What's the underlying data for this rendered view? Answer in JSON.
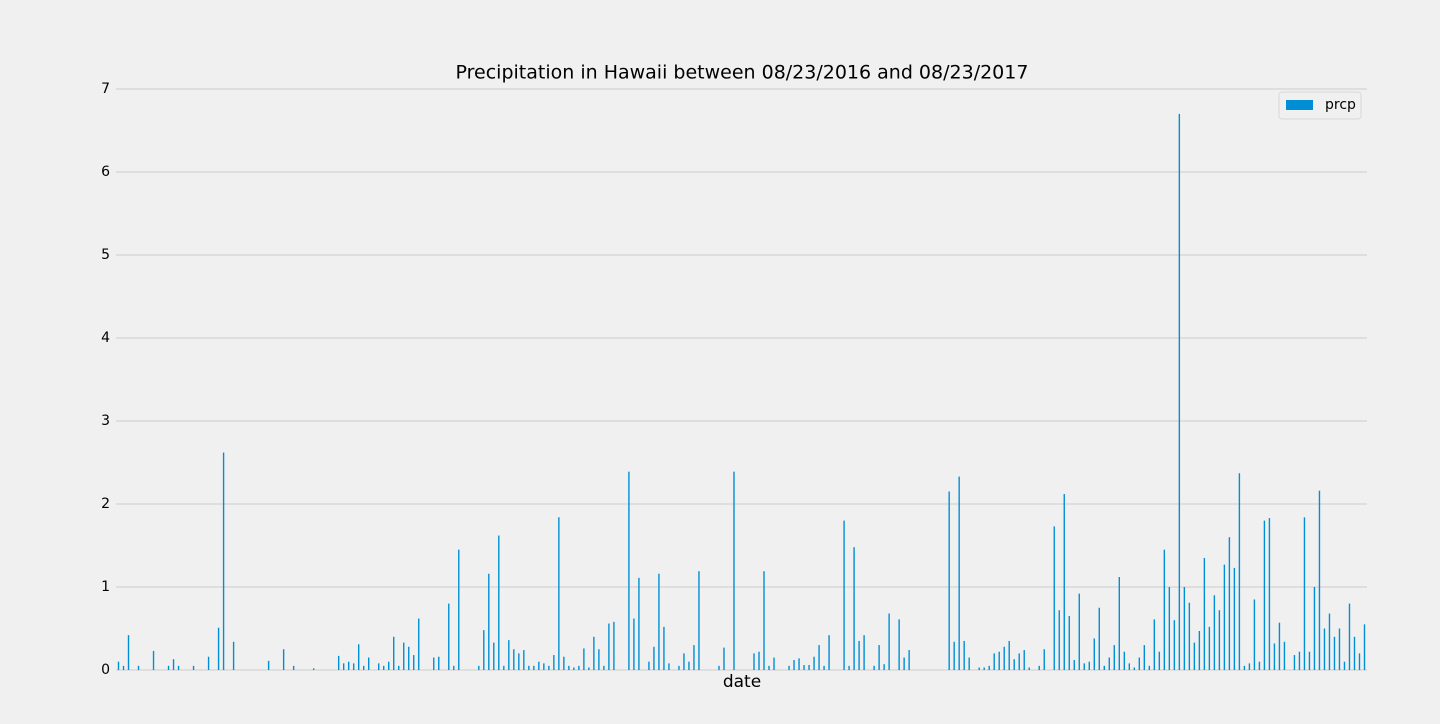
{
  "chart_data": {
    "type": "bar",
    "title": "Precipitation in Hawaii between 08/23/2016 and 08/23/2017",
    "xlabel": "date",
    "color": "#008fd5",
    "grid": true,
    "legend": "upper right",
    "series": [
      {
        "name": "prcp",
        "color": "#008fd5",
        "values": [
          0.1,
          0.05,
          0.42,
          0,
          0.05,
          0,
          0,
          0.23,
          0,
          0,
          0.05,
          0.13,
          0.05,
          0,
          0,
          0.05,
          0,
          0,
          0.16,
          0,
          0.51,
          2.62,
          0,
          0.34,
          0,
          0,
          0,
          0,
          0,
          0,
          0.11,
          0,
          0,
          0.25,
          0,
          0.05,
          0,
          0,
          0,
          0.02,
          0,
          0,
          0,
          0,
          0.17,
          0.08,
          0.1,
          0.08,
          0.31,
          0.05,
          0.15,
          0,
          0.08,
          0.05,
          0.1,
          0.4,
          0.05,
          0.33,
          0.28,
          0.18,
          0.62,
          0,
          0,
          0.15,
          0.16,
          0,
          0.8,
          0.05,
          1.45,
          0,
          0,
          0,
          0.05,
          0.48,
          1.16,
          0.33,
          1.62,
          0.05,
          0.36,
          0.25,
          0.2,
          0.24,
          0.05,
          0.05,
          0.1,
          0.08,
          0.05,
          0.18,
          1.84,
          0.16,
          0.05,
          0.03,
          0.05,
          0.26,
          0.03,
          0.4,
          0.25,
          0.05,
          0.56,
          0.58,
          0,
          0,
          2.39,
          0.62,
          1.11,
          0,
          0.1,
          0.28,
          1.16,
          0.52,
          0.08,
          0,
          0.05,
          0.2,
          0.1,
          0.3,
          1.19,
          0,
          0,
          0,
          0.05,
          0.27,
          0,
          2.39,
          0,
          0,
          0,
          0.2,
          0.22,
          1.19,
          0.05,
          0.15,
          0,
          0,
          0.05,
          0.12,
          0.14,
          0.06,
          0.06,
          0.16,
          0.3,
          0.05,
          0.42,
          0,
          0,
          1.8,
          0.05,
          1.48,
          0.35,
          0.42,
          0,
          0.05,
          0.3,
          0.07,
          0.68,
          0,
          0.61,
          0.15,
          0.24,
          0,
          0,
          0,
          0,
          0,
          0,
          0,
          2.15,
          0.34,
          2.33,
          0.35,
          0.15,
          0,
          0.03,
          0.03,
          0.05,
          0.2,
          0.22,
          0.28,
          0.35,
          0.13,
          0.2,
          0.24,
          0.03,
          0,
          0.05,
          0.25,
          0,
          1.73,
          0.72,
          2.12,
          0.65,
          0.12,
          0.92,
          0.08,
          0.1,
          0.38,
          0.75,
          0.05,
          0.15,
          0.3,
          1.12,
          0.22,
          0.08,
          0.03,
          0.15,
          0.3,
          0.05,
          0.61,
          0.22,
          1.45,
          1.0,
          0.6,
          6.7,
          1.0,
          0.81,
          0.33,
          0.47,
          1.35,
          0.52,
          0.9,
          0.72,
          1.27,
          1.6,
          1.23,
          2.37,
          0.05,
          0.08,
          0.85,
          0.1,
          1.8,
          1.83,
          0.32,
          0.57,
          0.34,
          0,
          0.18,
          0.22,
          1.84,
          0.22,
          1.0,
          2.16,
          0.5,
          0.68,
          0.4,
          0.5,
          0.1,
          0.8,
          0.4,
          0.2,
          0.55
        ]
      }
    ],
    "ylim": [
      0,
      7
    ],
    "yticks": [
      0,
      1,
      2,
      3,
      4,
      5,
      6,
      7
    ]
  }
}
